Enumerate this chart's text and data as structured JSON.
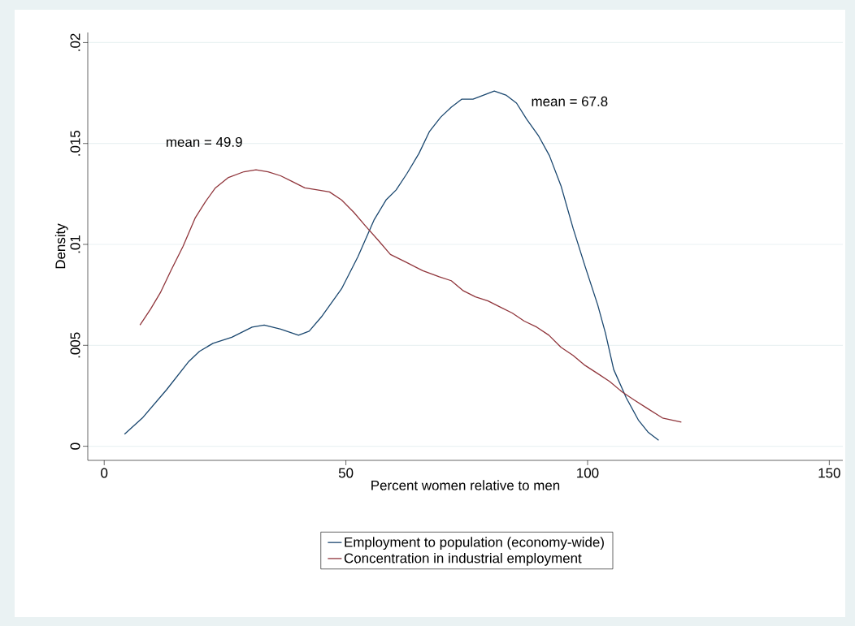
{
  "chart_data": {
    "type": "line",
    "xlabel": "Percent women relative to men",
    "ylabel": "Density",
    "xlim": [
      -3.4,
      152.8
    ],
    "ylim": [
      -0.0007,
      0.0205
    ],
    "xticks": [
      0,
      50,
      100,
      150
    ],
    "yticks": [
      {
        "value": 0,
        "label": "0"
      },
      {
        "value": 0.005,
        "label": ".005"
      },
      {
        "value": 0.01,
        "label": ".01"
      },
      {
        "value": 0.015,
        "label": ".015"
      },
      {
        "value": 0.02,
        "label": ".02"
      }
    ],
    "grid": "y",
    "legend": "bottom",
    "annotations": [
      "mean = 49.9",
      "mean = 67.8"
    ],
    "series": [
      {
        "name": "Employment to population (economy-wide)",
        "color": "#1a476f",
        "x": [
          4.2,
          7.9,
          12.9,
          17.5,
          19.7,
          22.5,
          26.4,
          30.6,
          33.1,
          36.5,
          40.2,
          42.4,
          44.9,
          49.1,
          52.5,
          55.8,
          58.3,
          60.4,
          62.6,
          65.1,
          67.3,
          69.6,
          71.8,
          74.0,
          76.3,
          78.5,
          80.7,
          83.1,
          85.3,
          87.4,
          89.8,
          92.1,
          94.5,
          97.0,
          99.5,
          102.1,
          103.7,
          105.4,
          108.0,
          110.5,
          112.5,
          114.7
        ],
        "values": [
          0.0006,
          0.0014,
          0.0028,
          0.0042,
          0.0047,
          0.0051,
          0.0054,
          0.0059,
          0.006,
          0.0058,
          0.0055,
          0.0057,
          0.0064,
          0.0078,
          0.0094,
          0.0112,
          0.0122,
          0.0127,
          0.0135,
          0.0145,
          0.0156,
          0.0163,
          0.0168,
          0.0172,
          0.0172,
          0.0174,
          0.0176,
          0.0174,
          0.017,
          0.0162,
          0.0154,
          0.0144,
          0.0129,
          0.0108,
          0.0089,
          0.007,
          0.0056,
          0.0038,
          0.0024,
          0.0013,
          0.0007,
          0.0003
        ]
      },
      {
        "name": "Concentration in industrial employment",
        "color": "#90353b",
        "x": [
          7.4,
          9.6,
          11.6,
          13.8,
          16.3,
          18.8,
          20.9,
          23.0,
          25.6,
          28.9,
          31.4,
          33.9,
          36.5,
          39.0,
          41.5,
          44.1,
          46.6,
          49.1,
          51.6,
          54.1,
          56.7,
          59.2,
          62.6,
          65.9,
          69.3,
          71.8,
          74.3,
          76.8,
          79.4,
          81.9,
          84.4,
          86.9,
          89.5,
          92.0,
          94.5,
          97.0,
          99.5,
          102.1,
          104.6,
          107.1,
          109.6,
          112.2,
          115.5,
          119.4
        ],
        "values": [
          0.006,
          0.0068,
          0.0076,
          0.0087,
          0.0099,
          0.0113,
          0.0121,
          0.0128,
          0.0133,
          0.0136,
          0.0137,
          0.0136,
          0.0134,
          0.0131,
          0.0128,
          0.0127,
          0.0126,
          0.0122,
          0.0116,
          0.0109,
          0.0102,
          0.0095,
          0.0091,
          0.0087,
          0.0084,
          0.0082,
          0.0077,
          0.0074,
          0.0072,
          0.0069,
          0.0066,
          0.0062,
          0.0059,
          0.0055,
          0.0049,
          0.0045,
          0.004,
          0.0036,
          0.0032,
          0.0027,
          0.0023,
          0.0019,
          0.0014,
          0.0012
        ]
      }
    ]
  }
}
